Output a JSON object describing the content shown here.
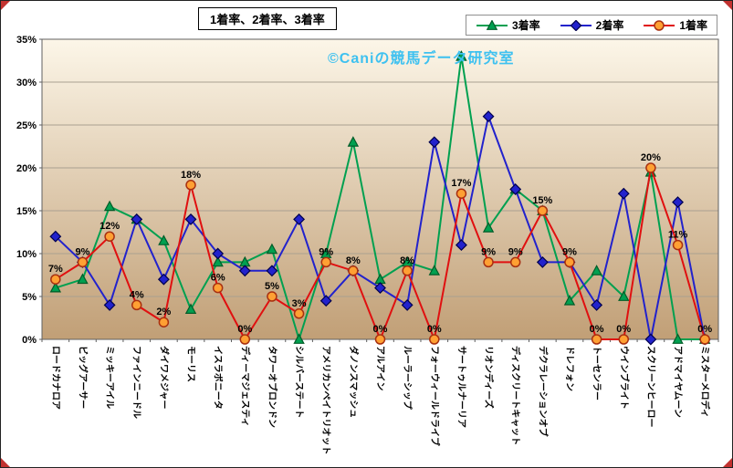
{
  "title": "1着率、2着率、3着率",
  "watermark": "©Caniの競馬データ研究室",
  "colors": {
    "plot_bg_top": "#FCF6E8",
    "plot_bg_bottom": "#C19F76",
    "grid": "#A9A090",
    "plot_border": "#606060",
    "green_line": "#00A050",
    "green_fill": "#00A050",
    "green_edge": "#005C28",
    "blue_line": "#2222CC",
    "blue_fill": "#2222CC",
    "blue_edge": "#00004E",
    "red_line": "#E01010",
    "red_fill": "#FFA033",
    "red_edge": "#A83010",
    "watermark": "#3EC1F0",
    "corner_mark": "#C23230"
  },
  "legend": {
    "items": [
      {
        "label": "3着率",
        "marker": "triangle"
      },
      {
        "label": "2着率",
        "marker": "diamond"
      },
      {
        "label": "1着率",
        "marker": "circle"
      }
    ]
  },
  "chart_data": {
    "type": "line",
    "title": "1着率、2着率、3着率",
    "xlabel": "",
    "ylabel": "",
    "ylim": [
      0,
      35
    ],
    "ytick_step": 5,
    "ytick_labels": [
      "0%",
      "5%",
      "10%",
      "15%",
      "20%",
      "25%",
      "30%",
      "35%"
    ],
    "grid": true,
    "legend_position": "top-right",
    "categories": [
      "ロードカナロア",
      "ビッグアーサー",
      "ミッキーアイル",
      "ファインニードル",
      "ダイワメジャー",
      "モーリス",
      "イスラボニータ",
      "ディーマジェスティ",
      "タワーオブロンドン",
      "シルバーステート",
      "アメリカンペイトリオット",
      "ダノンスマッシュ",
      "アルアイン",
      "ルーラーシップ",
      "フォーウィールドライブ",
      "サートゥルナーリア",
      "リオンディーズ",
      "ディスクリートキャット",
      "デクラレーションオブ",
      "ドレフォン",
      "トーセンラー",
      "ウインブライト",
      "スクリーンヒーロー",
      "アドマイヤムーン",
      "ミスターメロディ"
    ],
    "series": [
      {
        "name": "3着率",
        "marker": "triangle",
        "values": [
          6,
          7,
          15.5,
          14,
          11.5,
          3.5,
          9,
          9,
          10.5,
          0,
          10,
          23,
          7,
          9,
          8,
          33,
          13,
          17.5,
          15,
          4.5,
          8,
          5,
          19.5,
          0,
          0
        ]
      },
      {
        "name": "2着率",
        "marker": "diamond",
        "values": [
          12,
          9,
          4,
          14,
          7,
          14,
          10,
          8,
          8,
          14,
          4.5,
          8,
          6,
          4,
          23,
          11,
          26,
          17.5,
          9,
          9,
          4,
          17,
          0,
          16,
          0
        ]
      },
      {
        "name": "1着率",
        "marker": "circle",
        "values": [
          7,
          9,
          12,
          4,
          2,
          18,
          6,
          0,
          5,
          3,
          9,
          8,
          0,
          8,
          0,
          17,
          9,
          9,
          15,
          9,
          0,
          0,
          20,
          11,
          0
        ],
        "point_labels": [
          "7%",
          "9%",
          "12%",
          "4%",
          "2%",
          "18%",
          "6%",
          "0%",
          "5%",
          "3%",
          "9%",
          "8%",
          "0%",
          "8%",
          "0%",
          "17%",
          "9%",
          "9%",
          "15%",
          "9%",
          "0%",
          "0%",
          "20%",
          "11%",
          "0%"
        ]
      }
    ]
  }
}
